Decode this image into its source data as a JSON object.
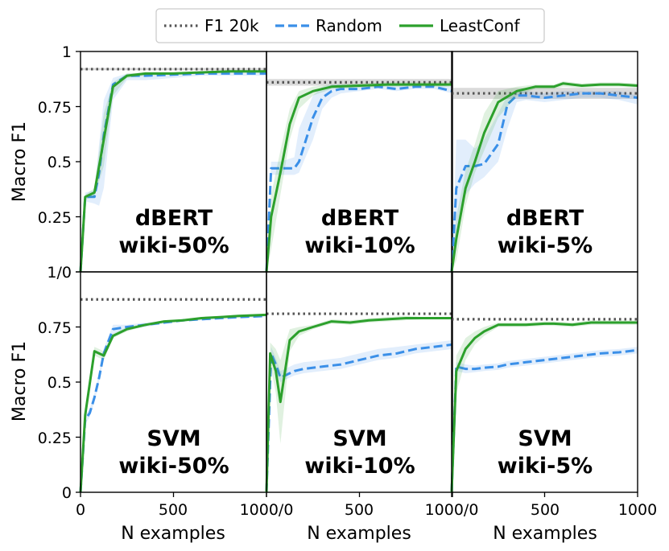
{
  "colors": {
    "baseline": "#555555",
    "random": "#3a8fe8",
    "leastconf": "#2ca02c"
  },
  "chart_data": {
    "type": "line",
    "layout": "grid 2 rows x 3 columns, shared axes",
    "legend": {
      "placement": "top-center",
      "entries": [
        {
          "label": "F1 20k",
          "style": "dotted",
          "color_key": "baseline"
        },
        {
          "label": "Random",
          "style": "dashed",
          "color_key": "random"
        },
        {
          "label": "LeastConf",
          "style": "solid",
          "color_key": "leastconf"
        }
      ]
    },
    "xlabel": "N examples",
    "ylabel": "Macro F1",
    "xlim": [
      0,
      1000
    ],
    "ylim": [
      0,
      1
    ],
    "x_tick_labels": [
      "0",
      "500",
      "1000/0",
      "500",
      "1000/0",
      "500",
      "1000"
    ],
    "y_tick_labels_top": [
      "1",
      "0.75",
      "0.5",
      "0.25"
    ],
    "y_tick_labels_bottom": [
      "1/0",
      "0.75",
      "0.5",
      "0.25",
      "0"
    ],
    "panels": [
      {
        "model": "dBERT",
        "dataset": "wiki-50%",
        "row": 0,
        "col": 0,
        "baseline": 0.92,
        "baseline_band": [
          0.915,
          0.925
        ],
        "random": {
          "x": [
            0,
            25,
            75,
            100,
            125,
            175,
            250,
            350,
            500,
            650,
            800,
            1000
          ],
          "y": [
            0.0,
            0.34,
            0.34,
            0.45,
            0.62,
            0.85,
            0.89,
            0.89,
            0.895,
            0.9,
            0.9,
            0.9
          ],
          "lower": [
            0.0,
            0.32,
            0.31,
            0.3,
            0.38,
            0.78,
            0.87,
            0.87,
            0.88,
            0.89,
            0.89,
            0.89
          ],
          "upper": [
            0.0,
            0.36,
            0.37,
            0.58,
            0.78,
            0.88,
            0.9,
            0.9,
            0.905,
            0.905,
            0.91,
            0.91
          ]
        },
        "leastconf": {
          "x": [
            0,
            25,
            75,
            125,
            175,
            250,
            350,
            500,
            650,
            800,
            1000
          ],
          "y": [
            0.0,
            0.34,
            0.36,
            0.6,
            0.84,
            0.89,
            0.9,
            0.9,
            0.905,
            0.91,
            0.91
          ],
          "lower": [
            0.0,
            0.33,
            0.34,
            0.48,
            0.8,
            0.88,
            0.89,
            0.895,
            0.9,
            0.905,
            0.905
          ],
          "upper": [
            0.0,
            0.35,
            0.38,
            0.72,
            0.86,
            0.9,
            0.905,
            0.905,
            0.91,
            0.915,
            0.915
          ]
        }
      },
      {
        "model": "dBERT",
        "dataset": "wiki-10%",
        "row": 0,
        "col": 1,
        "baseline": 0.86,
        "baseline_band": [
          0.845,
          0.875
        ],
        "random": {
          "x": [
            0,
            25,
            75,
            150,
            175,
            250,
            300,
            350,
            400,
            500,
            600,
            700,
            800,
            900,
            1000
          ],
          "y": [
            0.0,
            0.47,
            0.47,
            0.47,
            0.5,
            0.7,
            0.79,
            0.82,
            0.83,
            0.83,
            0.84,
            0.83,
            0.84,
            0.84,
            0.82
          ],
          "lower": [
            0.0,
            0.44,
            0.44,
            0.44,
            0.45,
            0.6,
            0.74,
            0.79,
            0.81,
            0.82,
            0.83,
            0.82,
            0.83,
            0.83,
            0.81
          ],
          "upper": [
            0.0,
            0.5,
            0.5,
            0.52,
            0.65,
            0.8,
            0.84,
            0.85,
            0.85,
            0.85,
            0.85,
            0.85,
            0.85,
            0.85,
            0.84
          ]
        },
        "leastconf": {
          "x": [
            0,
            25,
            75,
            125,
            175,
            250,
            350,
            500,
            650,
            800,
            1000
          ],
          "y": [
            0.0,
            0.25,
            0.45,
            0.67,
            0.79,
            0.82,
            0.84,
            0.845,
            0.85,
            0.85,
            0.85
          ],
          "lower": [
            0.0,
            0.1,
            0.35,
            0.6,
            0.74,
            0.8,
            0.83,
            0.835,
            0.84,
            0.84,
            0.84
          ],
          "upper": [
            0.0,
            0.35,
            0.55,
            0.74,
            0.82,
            0.84,
            0.85,
            0.855,
            0.86,
            0.86,
            0.86
          ]
        }
      },
      {
        "model": "dBERT",
        "dataset": "wiki-5%",
        "row": 0,
        "col": 2,
        "baseline": 0.81,
        "baseline_band": [
          0.785,
          0.835
        ],
        "random": {
          "x": [
            0,
            25,
            75,
            125,
            175,
            250,
            300,
            350,
            400,
            500,
            600,
            700,
            800,
            900,
            1000
          ],
          "y": [
            0.0,
            0.38,
            0.48,
            0.48,
            0.49,
            0.58,
            0.76,
            0.8,
            0.8,
            0.79,
            0.8,
            0.81,
            0.81,
            0.8,
            0.79
          ],
          "lower": [
            0.0,
            0.15,
            0.35,
            0.4,
            0.43,
            0.5,
            0.65,
            0.77,
            0.78,
            0.77,
            0.78,
            0.79,
            0.79,
            0.78,
            0.76
          ],
          "upper": [
            0.0,
            0.6,
            0.6,
            0.56,
            0.6,
            0.72,
            0.8,
            0.82,
            0.82,
            0.81,
            0.82,
            0.82,
            0.82,
            0.82,
            0.8
          ]
        },
        "leastconf": {
          "x": [
            0,
            25,
            75,
            125,
            175,
            250,
            350,
            450,
            500,
            550,
            600,
            700,
            800,
            900,
            1000
          ],
          "y": [
            0.0,
            0.15,
            0.38,
            0.5,
            0.63,
            0.77,
            0.82,
            0.84,
            0.84,
            0.84,
            0.855,
            0.845,
            0.85,
            0.85,
            0.845
          ],
          "lower": [
            0.0,
            0.05,
            0.3,
            0.45,
            0.55,
            0.7,
            0.8,
            0.83,
            0.83,
            0.83,
            0.84,
            0.835,
            0.84,
            0.84,
            0.835
          ],
          "upper": [
            0.0,
            0.25,
            0.46,
            0.58,
            0.72,
            0.82,
            0.84,
            0.85,
            0.85,
            0.85,
            0.865,
            0.855,
            0.86,
            0.86,
            0.855
          ]
        }
      },
      {
        "model": "SVM",
        "dataset": "wiki-50%",
        "row": 1,
        "col": 0,
        "baseline": 0.875,
        "baseline_band": [
          0.875,
          0.875
        ],
        "random": {
          "x": [
            0,
            25,
            50,
            75,
            100,
            125,
            175,
            250,
            350,
            450,
            550,
            650,
            750,
            850,
            1000
          ],
          "y": [
            0.0,
            0.33,
            0.36,
            0.43,
            0.52,
            0.63,
            0.74,
            0.75,
            0.76,
            0.77,
            0.78,
            0.785,
            0.79,
            0.795,
            0.8
          ],
          "lower": [
            0.0,
            0.31,
            0.34,
            0.41,
            0.5,
            0.61,
            0.72,
            0.74,
            0.75,
            0.765,
            0.775,
            0.78,
            0.785,
            0.79,
            0.795
          ],
          "upper": [
            0.0,
            0.35,
            0.38,
            0.45,
            0.54,
            0.65,
            0.76,
            0.76,
            0.77,
            0.775,
            0.785,
            0.79,
            0.795,
            0.8,
            0.805
          ]
        },
        "leastconf": {
          "x": [
            0,
            25,
            75,
            125,
            175,
            250,
            350,
            450,
            550,
            650,
            750,
            850,
            1000
          ],
          "y": [
            0.0,
            0.35,
            0.64,
            0.62,
            0.71,
            0.74,
            0.76,
            0.775,
            0.78,
            0.79,
            0.795,
            0.8,
            0.805
          ],
          "lower": [
            0.0,
            0.33,
            0.62,
            0.6,
            0.7,
            0.73,
            0.755,
            0.77,
            0.775,
            0.785,
            0.79,
            0.795,
            0.8
          ],
          "upper": [
            0.0,
            0.37,
            0.66,
            0.64,
            0.72,
            0.75,
            0.765,
            0.78,
            0.785,
            0.795,
            0.8,
            0.805,
            0.81
          ]
        }
      },
      {
        "model": "SVM",
        "dataset": "wiki-10%",
        "row": 1,
        "col": 1,
        "baseline": 0.81,
        "baseline_band": [
          0.81,
          0.81
        ],
        "random": {
          "x": [
            0,
            25,
            50,
            75,
            100,
            150,
            200,
            300,
            400,
            500,
            600,
            700,
            800,
            900,
            1000
          ],
          "y": [
            0.0,
            0.63,
            0.58,
            0.52,
            0.53,
            0.55,
            0.56,
            0.57,
            0.58,
            0.6,
            0.62,
            0.63,
            0.65,
            0.66,
            0.67
          ],
          "lower": [
            0.0,
            0.6,
            0.55,
            0.5,
            0.51,
            0.53,
            0.54,
            0.55,
            0.56,
            0.58,
            0.6,
            0.61,
            0.63,
            0.64,
            0.65
          ],
          "upper": [
            0.0,
            0.66,
            0.61,
            0.55,
            0.56,
            0.58,
            0.59,
            0.6,
            0.61,
            0.63,
            0.65,
            0.66,
            0.67,
            0.68,
            0.69
          ]
        },
        "leastconf": {
          "x": [
            0,
            20,
            50,
            75,
            125,
            175,
            250,
            350,
            450,
            550,
            650,
            750,
            850,
            1000
          ],
          "y": [
            0.0,
            0.63,
            0.55,
            0.41,
            0.69,
            0.73,
            0.75,
            0.775,
            0.77,
            0.78,
            0.785,
            0.79,
            0.79,
            0.79
          ],
          "lower": [
            0.0,
            0.58,
            0.45,
            0.22,
            0.64,
            0.71,
            0.74,
            0.765,
            0.76,
            0.77,
            0.775,
            0.78,
            0.785,
            0.785
          ],
          "upper": [
            0.0,
            0.68,
            0.65,
            0.6,
            0.74,
            0.75,
            0.76,
            0.785,
            0.78,
            0.79,
            0.795,
            0.8,
            0.795,
            0.795
          ]
        }
      },
      {
        "model": "SVM",
        "dataset": "wiki-5%",
        "row": 1,
        "col": 2,
        "baseline": 0.785,
        "baseline_band": [
          0.785,
          0.785
        ],
        "random": {
          "x": [
            0,
            25,
            75,
            125,
            175,
            250,
            300,
            350,
            400,
            500,
            600,
            700,
            800,
            900,
            1000
          ],
          "y": [
            0.0,
            0.57,
            0.56,
            0.56,
            0.565,
            0.57,
            0.58,
            0.585,
            0.59,
            0.6,
            0.61,
            0.62,
            0.63,
            0.635,
            0.645
          ],
          "lower": [
            0.0,
            0.55,
            0.54,
            0.545,
            0.55,
            0.555,
            0.565,
            0.57,
            0.575,
            0.585,
            0.595,
            0.605,
            0.615,
            0.62,
            0.63
          ],
          "upper": [
            0.0,
            0.59,
            0.58,
            0.575,
            0.58,
            0.585,
            0.595,
            0.6,
            0.605,
            0.615,
            0.625,
            0.635,
            0.645,
            0.65,
            0.66
          ]
        },
        "leastconf": {
          "x": [
            0,
            25,
            75,
            125,
            175,
            250,
            300,
            400,
            500,
            550,
            650,
            750,
            850,
            1000
          ],
          "y": [
            0.0,
            0.55,
            0.65,
            0.7,
            0.73,
            0.76,
            0.76,
            0.76,
            0.765,
            0.765,
            0.76,
            0.77,
            0.77,
            0.77
          ],
          "lower": [
            0.0,
            0.45,
            0.6,
            0.67,
            0.71,
            0.75,
            0.75,
            0.75,
            0.755,
            0.755,
            0.75,
            0.76,
            0.76,
            0.76
          ],
          "upper": [
            0.0,
            0.62,
            0.7,
            0.73,
            0.75,
            0.77,
            0.77,
            0.77,
            0.775,
            0.775,
            0.77,
            0.78,
            0.78,
            0.78
          ]
        }
      }
    ]
  }
}
